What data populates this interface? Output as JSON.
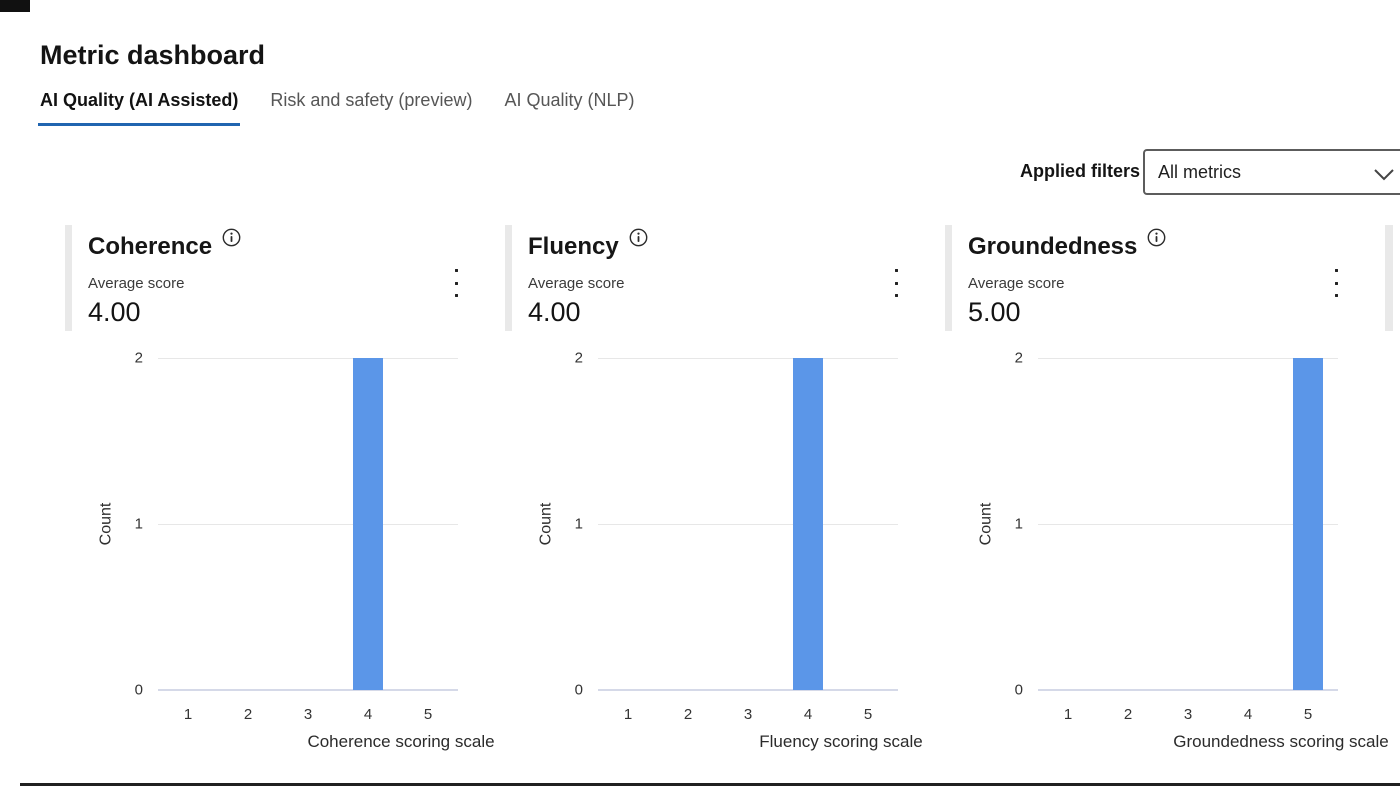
{
  "header": {
    "title": "Metric dashboard",
    "tabs": [
      {
        "label": "AI Quality (AI Assisted)",
        "active": true
      },
      {
        "label": "Risk and safety (preview)",
        "active": false
      },
      {
        "label": "AI Quality (NLP)",
        "active": false
      }
    ]
  },
  "filters": {
    "label": "Applied filters",
    "selected": "All metrics",
    "icon": "chevron-down-icon"
  },
  "cards": [
    {
      "title": "Coherence",
      "subtitle": "Average score",
      "value": "4.00",
      "icons": [
        "info-icon",
        "kebab-menu-icon"
      ]
    },
    {
      "title": "Fluency",
      "subtitle": "Average score",
      "value": "4.00",
      "icons": [
        "info-icon",
        "kebab-menu-icon"
      ]
    },
    {
      "title": "Groundedness",
      "subtitle": "Average score",
      "value": "5.00",
      "icons": [
        "info-icon",
        "kebab-menu-icon"
      ]
    }
  ],
  "chart_data": [
    {
      "type": "bar",
      "title": "Coherence",
      "categories": [
        "1",
        "2",
        "3",
        "4",
        "5"
      ],
      "values": [
        0,
        0,
        0,
        2,
        0
      ],
      "xlabel": "Coherence scoring scale",
      "ylabel": "Count",
      "yticks": [
        "0",
        "1",
        "2"
      ],
      "ylim": [
        0,
        2
      ],
      "grid": true,
      "legend": false,
      "bar_color": "#5b96e8"
    },
    {
      "type": "bar",
      "title": "Fluency",
      "categories": [
        "1",
        "2",
        "3",
        "4",
        "5"
      ],
      "values": [
        0,
        0,
        0,
        2,
        0
      ],
      "xlabel": "Fluency scoring scale",
      "ylabel": "Count",
      "yticks": [
        "0",
        "1",
        "2"
      ],
      "ylim": [
        0,
        2
      ],
      "grid": true,
      "legend": false,
      "bar_color": "#5b96e8"
    },
    {
      "type": "bar",
      "title": "Groundedness",
      "categories": [
        "1",
        "2",
        "3",
        "4",
        "5"
      ],
      "values": [
        0,
        0,
        0,
        0,
        2
      ],
      "xlabel": "Groundedness scoring scale",
      "ylabel": "Count",
      "yticks": [
        "0",
        "1",
        "2"
      ],
      "ylim": [
        0,
        2
      ],
      "grid": true,
      "legend": false,
      "bar_color": "#5b96e8"
    }
  ],
  "colors": {
    "tab_accent": "#2065b0",
    "bar_blue": "#5b96e8",
    "card_accent_gray": "#e9e9e9",
    "zeroline": "#d5d9e8"
  }
}
